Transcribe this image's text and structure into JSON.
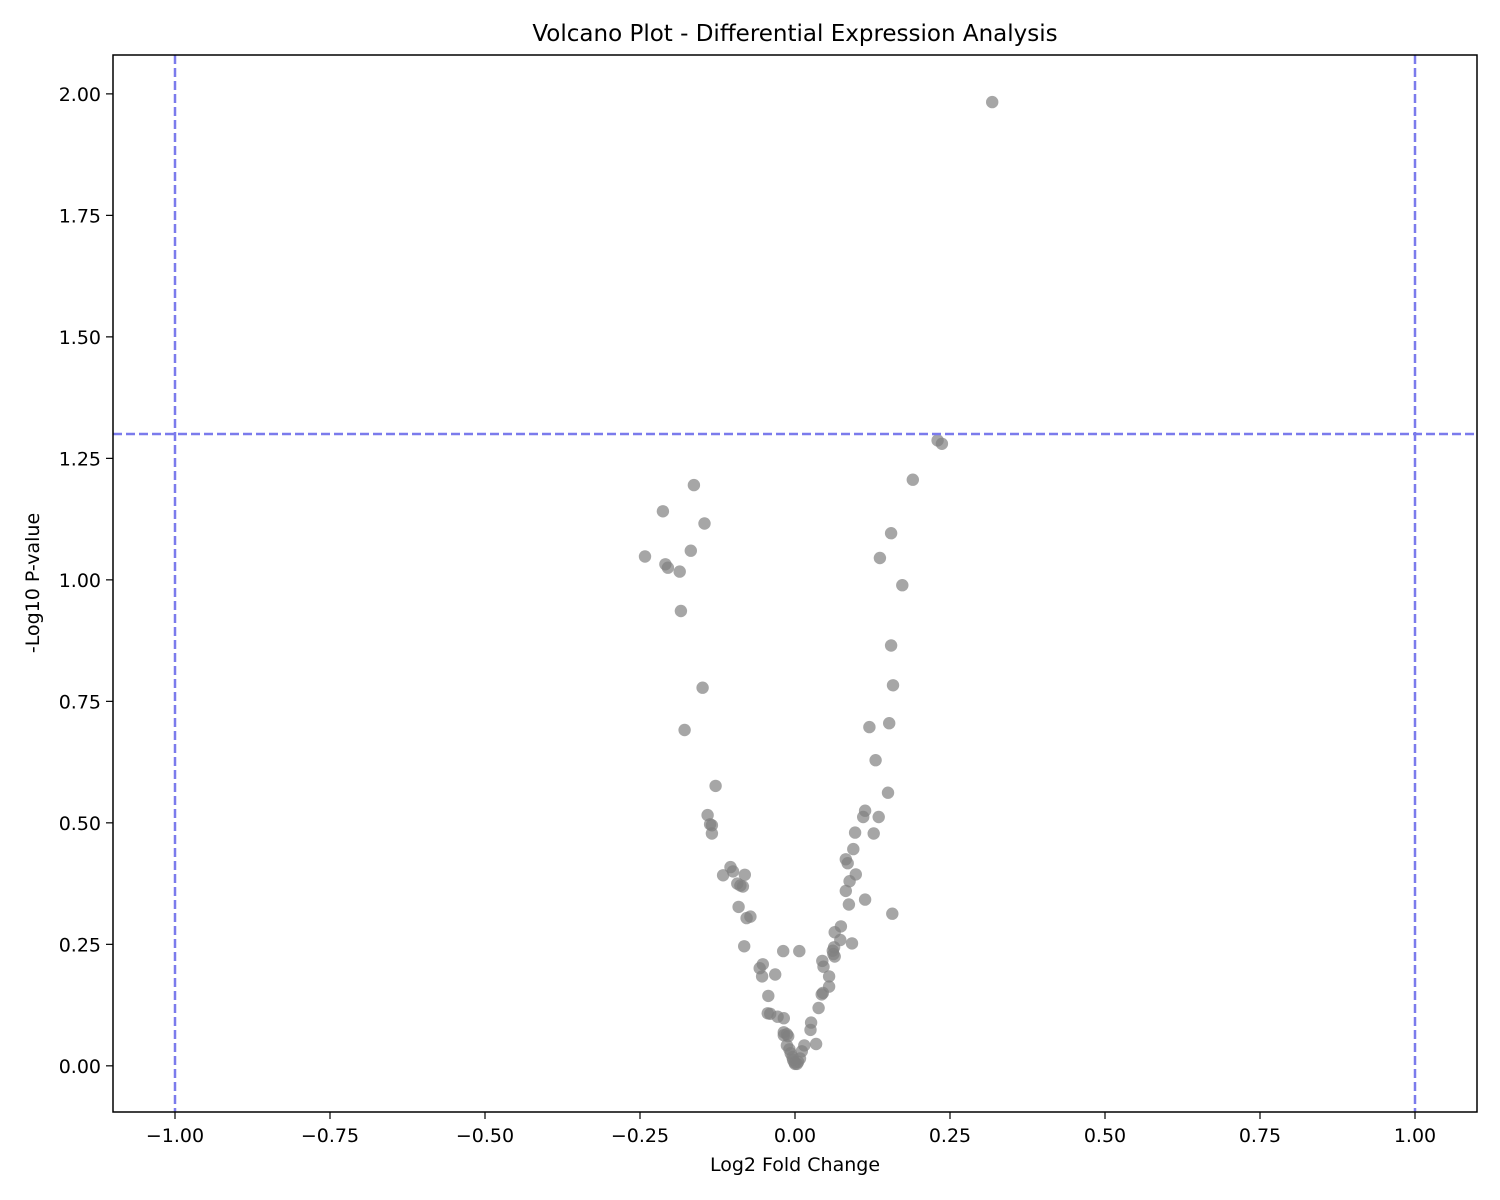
{
  "chart_data": {
    "type": "scatter",
    "title": "Volcano Plot - Differential Expression Analysis",
    "xlabel": "Log2 Fold Change",
    "ylabel": "-Log10 P-value",
    "xlim": [
      -1.1,
      1.1
    ],
    "ylim": [
      -0.095,
      2.08
    ],
    "x_ticks": [
      -1.0,
      -0.75,
      -0.5,
      -0.25,
      0.0,
      0.25,
      0.5,
      0.75,
      1.0
    ],
    "x_tick_labels": [
      "−1.00",
      "−0.75",
      "−0.50",
      "−0.25",
      "0.00",
      "0.25",
      "0.50",
      "0.75",
      "1.00"
    ],
    "y_ticks": [
      0.0,
      0.25,
      0.5,
      0.75,
      1.0,
      1.25,
      1.5,
      1.75,
      2.0
    ],
    "y_tick_labels": [
      "0.00",
      "0.25",
      "0.50",
      "0.75",
      "1.00",
      "1.25",
      "1.50",
      "1.75",
      "2.00"
    ],
    "grid": false,
    "point_color": "#808080",
    "threshold_color": "#7b7bec",
    "thresholds": {
      "vertical": [
        -1.0,
        1.0
      ],
      "horizontal": [
        1.3
      ]
    },
    "points": [
      [
        0.318,
        1.983
      ],
      [
        0.23,
        1.287
      ],
      [
        0.237,
        1.28
      ],
      [
        0.19,
        1.206
      ],
      [
        0.155,
        1.096
      ],
      [
        0.137,
        1.045
      ],
      [
        0.173,
        0.989
      ],
      [
        0.155,
        0.865
      ],
      [
        0.158,
        0.783
      ],
      [
        0.152,
        0.705
      ],
      [
        0.12,
        0.697
      ],
      [
        0.13,
        0.629
      ],
      [
        0.15,
        0.562
      ],
      [
        0.113,
        0.525
      ],
      [
        0.11,
        0.512
      ],
      [
        0.135,
        0.512
      ],
      [
        0.097,
        0.48
      ],
      [
        0.127,
        0.478
      ],
      [
        0.094,
        0.446
      ],
      [
        0.082,
        0.425
      ],
      [
        0.085,
        0.417
      ],
      [
        0.098,
        0.394
      ],
      [
        0.088,
        0.38
      ],
      [
        0.082,
        0.36
      ],
      [
        0.113,
        0.342
      ],
      [
        0.087,
        0.332
      ],
      [
        0.157,
        0.313
      ],
      [
        0.074,
        0.287
      ],
      [
        0.064,
        0.275
      ],
      [
        0.073,
        0.259
      ],
      [
        0.092,
        0.252
      ],
      [
        0.063,
        0.244
      ],
      [
        0.061,
        0.237
      ],
      [
        0.062,
        0.23
      ],
      [
        0.064,
        0.225
      ],
      [
        0.044,
        0.216
      ],
      [
        0.046,
        0.204
      ],
      [
        0.055,
        0.184
      ],
      [
        0.055,
        0.163
      ],
      [
        0.045,
        0.15
      ],
      [
        0.043,
        0.147
      ],
      [
        0.038,
        0.119
      ],
      [
        0.026,
        0.089
      ],
      [
        0.025,
        0.074
      ],
      [
        0.034,
        0.045
      ],
      [
        0.015,
        0.042
      ],
      [
        0.011,
        0.03
      ],
      [
        0.008,
        0.015
      ],
      [
        0.005,
        0.008
      ],
      [
        0.003,
        0.004
      ],
      [
        0.007,
        0.236
      ],
      [
        -0.163,
        1.195
      ],
      [
        -0.213,
        1.141
      ],
      [
        -0.146,
        1.116
      ],
      [
        -0.168,
        1.06
      ],
      [
        -0.242,
        1.048
      ],
      [
        -0.209,
        1.032
      ],
      [
        -0.205,
        1.025
      ],
      [
        -0.186,
        1.017
      ],
      [
        -0.184,
        0.936
      ],
      [
        -0.149,
        0.778
      ],
      [
        -0.178,
        0.691
      ],
      [
        -0.128,
        0.576
      ],
      [
        -0.141,
        0.516
      ],
      [
        -0.137,
        0.497
      ],
      [
        -0.134,
        0.495
      ],
      [
        -0.134,
        0.478
      ],
      [
        -0.104,
        0.409
      ],
      [
        -0.1,
        0.4
      ],
      [
        -0.081,
        0.393
      ],
      [
        -0.116,
        0.392
      ],
      [
        -0.093,
        0.375
      ],
      [
        -0.088,
        0.371
      ],
      [
        -0.084,
        0.369
      ],
      [
        -0.091,
        0.327
      ],
      [
        -0.072,
        0.307
      ],
      [
        -0.078,
        0.304
      ],
      [
        -0.082,
        0.246
      ],
      [
        -0.019,
        0.236
      ],
      [
        -0.052,
        0.209
      ],
      [
        -0.057,
        0.201
      ],
      [
        -0.032,
        0.188
      ],
      [
        -0.053,
        0.184
      ],
      [
        -0.043,
        0.144
      ],
      [
        -0.044,
        0.108
      ],
      [
        -0.04,
        0.107
      ],
      [
        -0.028,
        0.101
      ],
      [
        -0.018,
        0.098
      ],
      [
        -0.018,
        0.069
      ],
      [
        -0.013,
        0.065
      ],
      [
        -0.018,
        0.063
      ],
      [
        -0.011,
        0.061
      ],
      [
        -0.013,
        0.042
      ],
      [
        -0.009,
        0.034
      ],
      [
        -0.007,
        0.026
      ],
      [
        -0.004,
        0.018
      ],
      [
        -0.003,
        0.012
      ],
      [
        -0.001,
        0.007
      ],
      [
        0.0,
        0.004
      ]
    ]
  }
}
